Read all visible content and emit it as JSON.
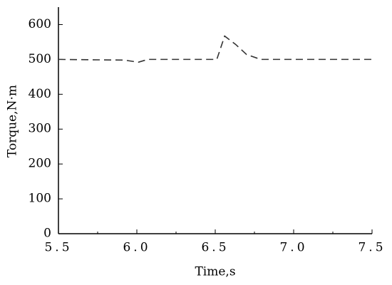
{
  "chart_data": {
    "type": "line",
    "x_label": "Time,s",
    "y_label": "Torque,N·m",
    "x": [
      5.5,
      5.92,
      6.01,
      6.07,
      6.51,
      6.56,
      6.63,
      6.7,
      6.79,
      7.5
    ],
    "series": [
      {
        "color": "#333333",
        "values": [
          500,
          498,
          492,
          500,
          500,
          567,
          543,
          514,
          500,
          500
        ]
      }
    ],
    "xlim": [
      5.5,
      7.5
    ],
    "xticks": [
      5.5,
      {
        "value": 6,
        "label": "6.0"
      },
      6.5,
      {
        "value": 7,
        "label": "7.0"
      },
      7.5
    ],
    "xminorticks": [
      5.75,
      6.25,
      6.75,
      7.25
    ],
    "ylim": [
      0,
      650
    ],
    "yticks": [
      0,
      100,
      200,
      300,
      400,
      500,
      600
    ],
    "dashed": true
  }
}
